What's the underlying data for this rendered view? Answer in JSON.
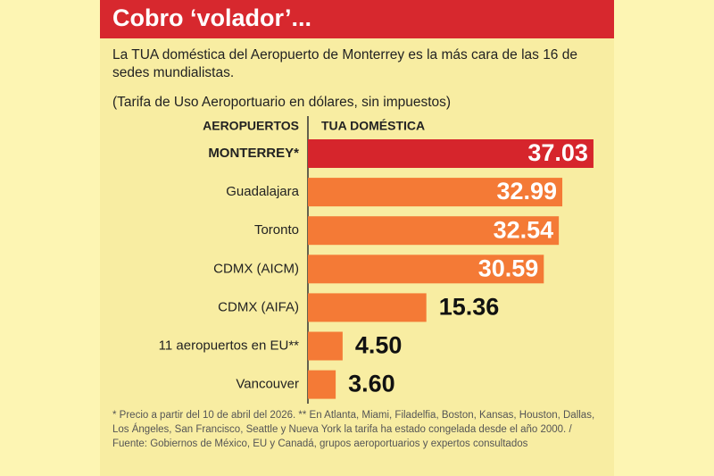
{
  "chart_data": {
    "type": "bar",
    "orientation": "horizontal",
    "title": "Cobro ‘volador’...",
    "subtitle": "La TUA doméstica del Aeropuerto de Monterrey es la más cara de las 16 de sedes mundialistas.",
    "subtitle_2": "(Tarifa de Uso Aeroportuario en dólares, sin impuestos)",
    "y_label": "AEROPUERTOS",
    "x_label": "TUA DOMÉSTICA",
    "categories": [
      "MONTERREY*",
      "Guadalajara",
      "Toronto",
      "CDMX (AICM)",
      "CDMX (AIFA)",
      "11 aeropuertos en EU**",
      "Vancouver"
    ],
    "values": [
      37.03,
      32.99,
      32.54,
      30.59,
      15.36,
      4.5,
      3.6
    ],
    "value_labels": [
      "37.03",
      "32.99",
      "32.54",
      "30.59",
      "15.36",
      "4.50",
      "3.60"
    ],
    "colors": [
      "#d6252c",
      "#f47a36",
      "#f47a36",
      "#f47a36",
      "#f47a36",
      "#f47a36",
      "#f47a36"
    ],
    "note": "* Precio a partir del 10 de abril del 2026. ** En Atlanta, Miami, Filadelfia, Boston, Kansas, Houston, Dallas, Los Ángeles, San Francisco, Seattle y Nueva York la tarifa ha estado congelada desde el año 2000.  / Fuente: Gobiernos de México, EU y Canadá, grupos aeroportuarios y expertos consultados"
  }
}
